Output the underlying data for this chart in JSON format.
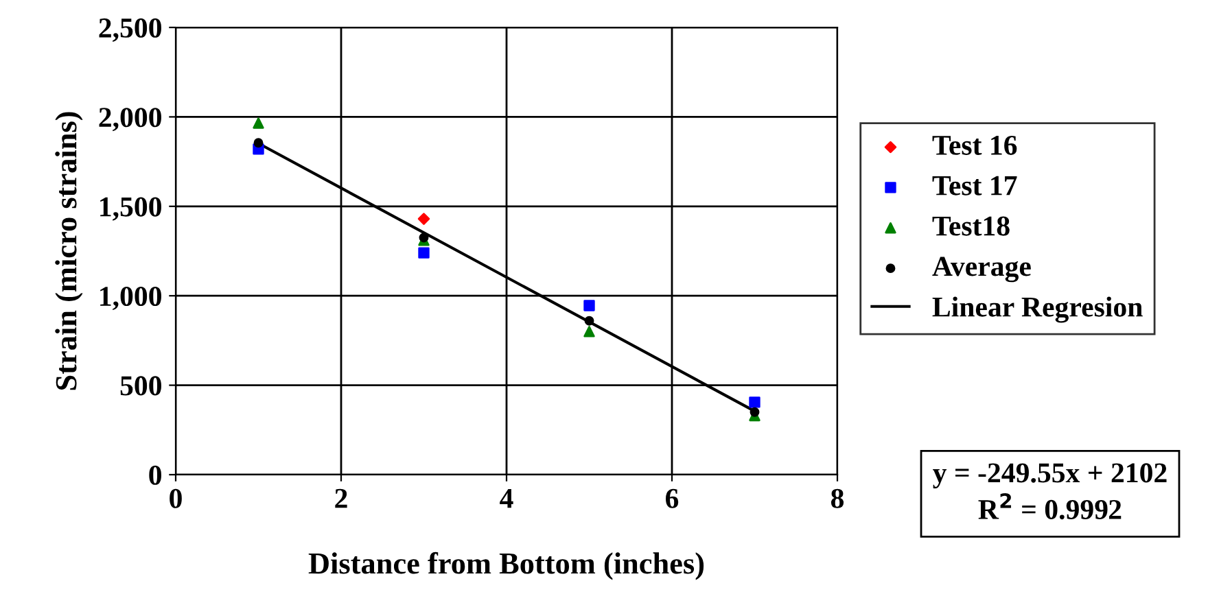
{
  "chart_data": {
    "type": "scatter",
    "xlabel": "Distance from Bottom (inches)",
    "ylabel": "Strain (micro strains)",
    "xlim": [
      0,
      8
    ],
    "xticks": [
      0,
      2,
      4,
      6,
      8
    ],
    "ylim": [
      0,
      2500
    ],
    "yticks": [
      {
        "value": 0,
        "label": "0"
      },
      {
        "value": 500,
        "label": "500"
      },
      {
        "value": 1000,
        "label": "1,000"
      },
      {
        "value": 1500,
        "label": "1,500"
      },
      {
        "value": 2000,
        "label": "2,000"
      },
      {
        "value": 2500,
        "label": "2,500"
      }
    ],
    "grid": true,
    "legend": "right",
    "series": [
      {
        "name": "Test 16",
        "color": "#ff0000",
        "marker": "diamond",
        "x": [
          3
        ],
        "values": [
          1430
        ]
      },
      {
        "name": "Test 17",
        "color": "#0000ff",
        "marker": "square",
        "x": [
          1,
          3,
          5,
          7
        ],
        "values": [
          1820,
          1240,
          945,
          405
        ]
      },
      {
        "name": "Test18",
        "color": "#008000",
        "marker": "triangle",
        "x": [
          1,
          3,
          5,
          7
        ],
        "values": [
          1965,
          1310,
          800,
          330
        ]
      },
      {
        "name": "Average",
        "color": "#000000",
        "marker": "circle",
        "x": [
          1,
          3,
          5,
          7
        ],
        "values": [
          1855,
          1325,
          860,
          350
        ]
      },
      {
        "name": "Linear Regresion",
        "type": "line",
        "color": "#000000",
        "marker": "none",
        "x": [
          1,
          7
        ],
        "values": [
          1852,
          355
        ]
      }
    ],
    "annotations": [
      "y = -249.55x + 2102\nR$^{2}$ = 0.9992"
    ]
  }
}
